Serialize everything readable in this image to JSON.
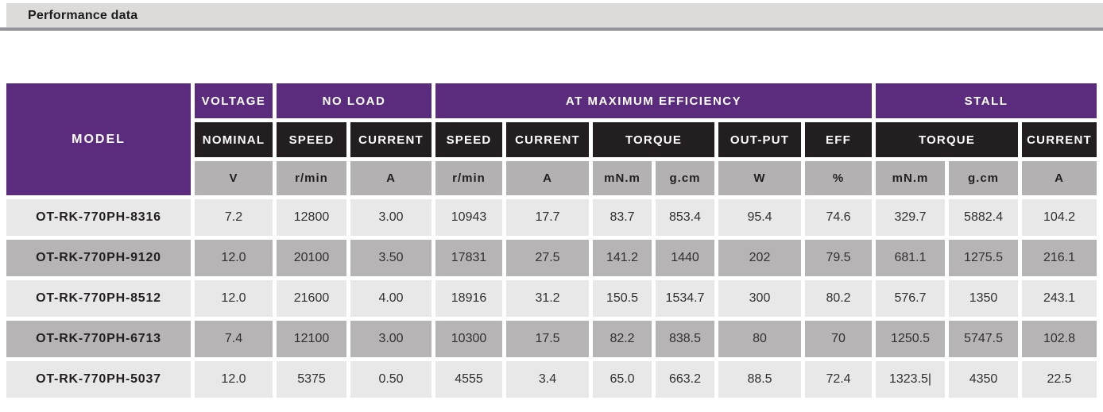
{
  "header": {
    "title": "Performance data"
  },
  "table": {
    "groups": {
      "model": "MODEL",
      "voltage": "VOLTAGE",
      "no_load": "NO LOAD",
      "max_efficiency": "AT MAXIMUM EFFICIENCY",
      "stall": "STALL"
    },
    "sub": [
      "NOMINAL",
      "SPEED",
      "CURRENT",
      "SPEED",
      "CURRENT",
      "TORQUE",
      "OUT-PUT",
      "EFF",
      "TORQUE",
      "CURRENT"
    ],
    "units": [
      "V",
      "r/min",
      "A",
      "r/min",
      "A",
      "mN.m",
      "g.cm",
      "W",
      "%",
      "mN.m",
      "g.cm",
      "A"
    ],
    "rows": [
      {
        "model": "OT-RK-770PH-8316",
        "values": [
          "7.2",
          "12800",
          "3.00",
          "10943",
          "17.7",
          "83.7",
          "853.4",
          "95.4",
          "74.6",
          "329.7",
          "5882.4",
          "104.2"
        ]
      },
      {
        "model": "OT-RK-770PH-9120",
        "values": [
          "12.0",
          "20100",
          "3.50",
          "17831",
          "27.5",
          "141.2",
          "1440",
          "202",
          "79.5",
          "681.1",
          "1275.5",
          "216.1"
        ]
      },
      {
        "model": "OT-RK-770PH-8512",
        "values": [
          "12.0",
          "21600",
          "4.00",
          "18916",
          "31.2",
          "150.5",
          "1534.7",
          "300",
          "80.2",
          "576.7",
          "1350",
          "243.1"
        ]
      },
      {
        "model": "OT-RK-770PH-6713",
        "values": [
          "7.4",
          "12100",
          "3.00",
          "10300",
          "17.5",
          "82.2",
          "838.5",
          "80",
          "70",
          "1250.5",
          "5747.5",
          "102.8"
        ]
      },
      {
        "model": "OT-RK-770PH-5037",
        "values": [
          "12.0",
          "5375",
          "0.50",
          "4555",
          "3.4",
          "65.0",
          "663.2",
          "88.5",
          "72.4",
          "1323.5|",
          "4350",
          "22.5"
        ]
      }
    ],
    "colors": {
      "group_header": "#5b2c7e",
      "sub_header": "#231f20",
      "unit_header": "#b4b1b2",
      "row_light": "#e9e8e8",
      "row_dark": "#b7b4b5"
    }
  }
}
